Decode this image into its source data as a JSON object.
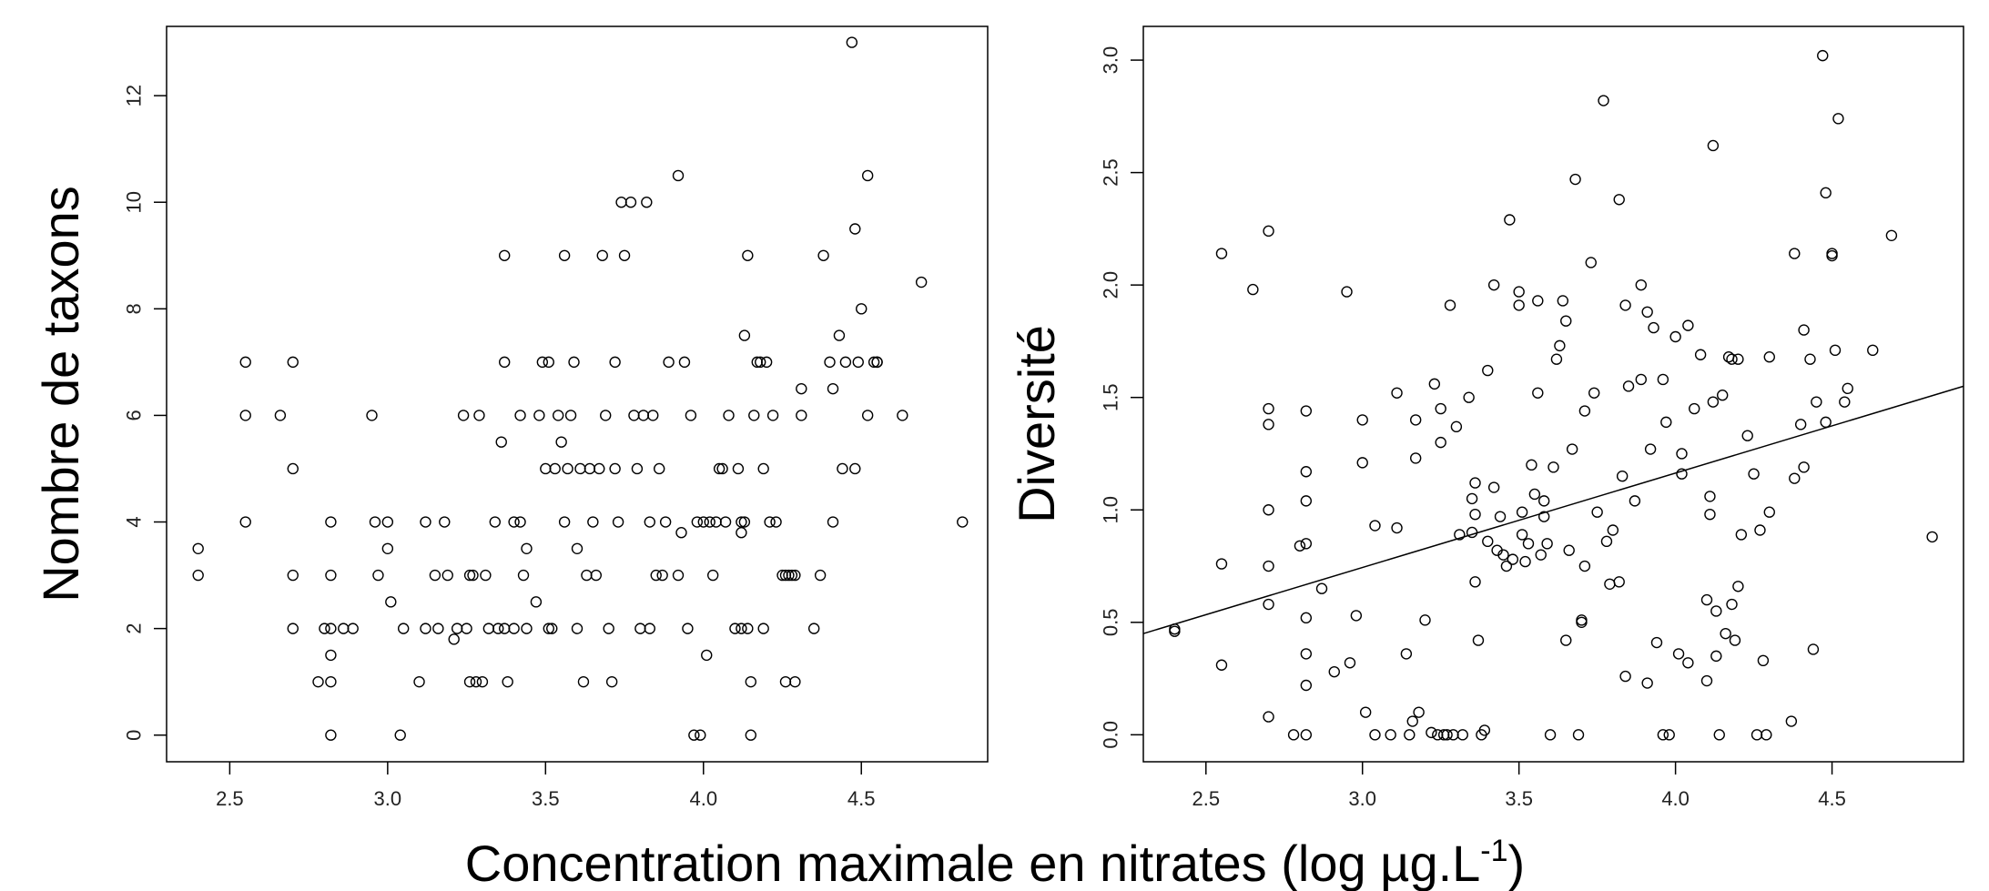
{
  "figure": {
    "shared_xlabel": "Concentration maximale en nitrates (log µg.L",
    "shared_xlabel_sup": "-1",
    "shared_xlabel_end": ")"
  },
  "chart_data": [
    {
      "type": "scatter",
      "title": "",
      "xlabel": "Concentration maximale en nitrates (log µg.L-1)",
      "ylabel": "Nombre de taxons",
      "xlim": [
        2.3,
        4.9
      ],
      "ylim": [
        -0.5,
        13.3
      ],
      "x_ticks": [
        2.5,
        3.0,
        3.5,
        4.0,
        4.5
      ],
      "x_tick_labels": [
        "2.5",
        "3.0",
        "3.5",
        "4.0",
        "4.5"
      ],
      "y_ticks": [
        0,
        2,
        4,
        6,
        8,
        10,
        12
      ],
      "y_tick_labels": [
        "0",
        "2",
        "4",
        "6",
        "8",
        "10",
        "12"
      ],
      "grid": false,
      "regression_line": null,
      "points": [
        [
          2.4,
          3.5
        ],
        [
          2.4,
          3
        ],
        [
          2.55,
          7
        ],
        [
          2.55,
          6
        ],
        [
          2.55,
          4
        ],
        [
          2.66,
          6
        ],
        [
          2.7,
          7
        ],
        [
          2.7,
          5
        ],
        [
          2.7,
          3
        ],
        [
          2.7,
          2
        ],
        [
          2.78,
          1
        ],
        [
          2.8,
          2
        ],
        [
          2.82,
          2
        ],
        [
          2.82,
          4
        ],
        [
          2.82,
          3
        ],
        [
          2.82,
          1.5
        ],
        [
          2.82,
          1
        ],
        [
          2.82,
          0
        ],
        [
          2.86,
          2
        ],
        [
          2.89,
          2
        ],
        [
          2.95,
          6
        ],
        [
          2.96,
          4
        ],
        [
          2.97,
          3
        ],
        [
          3.0,
          4
        ],
        [
          3.0,
          3.5
        ],
        [
          3.01,
          2.5
        ],
        [
          3.04,
          0
        ],
        [
          3.05,
          2
        ],
        [
          3.1,
          1
        ],
        [
          3.12,
          2
        ],
        [
          3.12,
          4
        ],
        [
          3.15,
          3
        ],
        [
          3.16,
          2
        ],
        [
          3.18,
          4
        ],
        [
          3.19,
          3
        ],
        [
          3.21,
          1.8
        ],
        [
          3.22,
          2
        ],
        [
          3.24,
          6
        ],
        [
          3.25,
          2
        ],
        [
          3.26,
          1
        ],
        [
          3.26,
          3
        ],
        [
          3.27,
          3
        ],
        [
          3.28,
          1
        ],
        [
          3.29,
          6
        ],
        [
          3.3,
          1
        ],
        [
          3.31,
          3
        ],
        [
          3.32,
          2
        ],
        [
          3.34,
          4
        ],
        [
          3.35,
          2
        ],
        [
          3.36,
          5.5
        ],
        [
          3.37,
          9
        ],
        [
          3.37,
          7
        ],
        [
          3.37,
          2
        ],
        [
          3.38,
          1
        ],
        [
          3.4,
          4
        ],
        [
          3.4,
          2
        ],
        [
          3.42,
          6
        ],
        [
          3.42,
          4
        ],
        [
          3.43,
          3
        ],
        [
          3.44,
          2
        ],
        [
          3.44,
          3.5
        ],
        [
          3.47,
          2.5
        ],
        [
          3.48,
          6
        ],
        [
          3.49,
          7
        ],
        [
          3.5,
          5
        ],
        [
          3.51,
          7
        ],
        [
          3.51,
          2
        ],
        [
          3.52,
          2
        ],
        [
          3.53,
          5
        ],
        [
          3.54,
          6
        ],
        [
          3.55,
          5.5
        ],
        [
          3.56,
          9
        ],
        [
          3.56,
          4
        ],
        [
          3.57,
          5
        ],
        [
          3.58,
          6
        ],
        [
          3.59,
          7
        ],
        [
          3.6,
          2
        ],
        [
          3.6,
          3.5
        ],
        [
          3.61,
          5
        ],
        [
          3.62,
          1
        ],
        [
          3.63,
          3
        ],
        [
          3.64,
          5
        ],
        [
          3.65,
          4
        ],
        [
          3.66,
          3
        ],
        [
          3.67,
          5
        ],
        [
          3.68,
          9
        ],
        [
          3.69,
          6
        ],
        [
          3.7,
          2
        ],
        [
          3.71,
          1
        ],
        [
          3.72,
          7
        ],
        [
          3.72,
          5
        ],
        [
          3.73,
          4
        ],
        [
          3.74,
          10
        ],
        [
          3.75,
          9
        ],
        [
          3.77,
          10
        ],
        [
          3.78,
          6
        ],
        [
          3.79,
          5
        ],
        [
          3.8,
          2
        ],
        [
          3.81,
          6
        ],
        [
          3.82,
          10
        ],
        [
          3.83,
          4
        ],
        [
          3.83,
          2
        ],
        [
          3.84,
          6
        ],
        [
          3.85,
          3
        ],
        [
          3.86,
          5
        ],
        [
          3.87,
          3
        ],
        [
          3.88,
          4
        ],
        [
          3.89,
          7
        ],
        [
          3.92,
          10.5
        ],
        [
          3.92,
          3
        ],
        [
          3.93,
          3.8
        ],
        [
          3.94,
          7
        ],
        [
          3.95,
          2
        ],
        [
          3.96,
          6
        ],
        [
          3.97,
          0
        ],
        [
          3.98,
          4
        ],
        [
          3.99,
          0
        ],
        [
          4.0,
          4
        ],
        [
          4.01,
          1.5
        ],
        [
          4.02,
          4
        ],
        [
          4.03,
          3
        ],
        [
          4.04,
          4
        ],
        [
          4.05,
          5
        ],
        [
          4.06,
          5
        ],
        [
          4.07,
          4
        ],
        [
          4.08,
          6
        ],
        [
          4.1,
          2
        ],
        [
          4.11,
          5
        ],
        [
          4.12,
          4
        ],
        [
          4.12,
          3.8
        ],
        [
          4.12,
          2
        ],
        [
          4.13,
          7.5
        ],
        [
          4.13,
          4
        ],
        [
          4.14,
          9
        ],
        [
          4.14,
          2
        ],
        [
          4.15,
          1
        ],
        [
          4.15,
          0
        ],
        [
          4.16,
          6
        ],
        [
          4.17,
          7
        ],
        [
          4.18,
          7
        ],
        [
          4.19,
          5
        ],
        [
          4.19,
          2
        ],
        [
          4.2,
          7
        ],
        [
          4.21,
          4
        ],
        [
          4.22,
          6
        ],
        [
          4.23,
          4
        ],
        [
          4.25,
          3
        ],
        [
          4.26,
          3
        ],
        [
          4.26,
          1
        ],
        [
          4.27,
          3
        ],
        [
          4.28,
          3
        ],
        [
          4.29,
          1
        ],
        [
          4.29,
          3
        ],
        [
          4.31,
          6.5
        ],
        [
          4.31,
          6
        ],
        [
          4.35,
          2
        ],
        [
          4.37,
          3
        ],
        [
          4.38,
          9
        ],
        [
          4.4,
          7
        ],
        [
          4.41,
          6.5
        ],
        [
          4.41,
          4
        ],
        [
          4.43,
          7.5
        ],
        [
          4.44,
          5
        ],
        [
          4.45,
          7
        ],
        [
          4.47,
          13
        ],
        [
          4.48,
          9.5
        ],
        [
          4.48,
          5
        ],
        [
          4.49,
          7
        ],
        [
          4.5,
          8
        ],
        [
          4.52,
          6
        ],
        [
          4.52,
          10.5
        ],
        [
          4.54,
          7
        ],
        [
          4.55,
          7
        ],
        [
          4.55,
          7
        ],
        [
          4.63,
          6
        ],
        [
          4.69,
          8.5
        ],
        [
          4.82,
          4
        ]
      ]
    },
    {
      "type": "scatter",
      "title": "",
      "xlabel": "Concentration maximale en nitrates (log µg.L-1)",
      "ylabel": "Diversité",
      "xlim": [
        2.3,
        4.92
      ],
      "ylim": [
        -0.12,
        3.15
      ],
      "x_ticks": [
        2.5,
        3.0,
        3.5,
        4.0,
        4.5
      ],
      "x_tick_labels": [
        "2.5",
        "3.0",
        "3.5",
        "4.0",
        "4.5"
      ],
      "y_ticks": [
        0.0,
        0.5,
        1.0,
        1.5,
        2.0,
        2.5,
        3.0
      ],
      "y_tick_labels": [
        "0.0",
        "0.5",
        "1.0",
        "1.5",
        "2.0",
        "2.5",
        "3.0"
      ],
      "grid": false,
      "regression_line": {
        "x": [
          2.3,
          4.92
        ],
        "y": [
          0.45,
          1.55
        ]
      },
      "points": [
        [
          2.4,
          0.46
        ],
        [
          2.4,
          0.47
        ],
        [
          2.55,
          2.14
        ],
        [
          2.55,
          0.76
        ],
        [
          2.55,
          0.31
        ],
        [
          2.65,
          1.98
        ],
        [
          2.7,
          2.24
        ],
        [
          2.7,
          1.45
        ],
        [
          2.7,
          1.38
        ],
        [
          2.7,
          1.0
        ],
        [
          2.7,
          0.75
        ],
        [
          2.7,
          0.58
        ],
        [
          2.7,
          0.08
        ],
        [
          2.78,
          0.0
        ],
        [
          2.8,
          0.84
        ],
        [
          2.82,
          1.44
        ],
        [
          2.82,
          1.17
        ],
        [
          2.82,
          1.04
        ],
        [
          2.82,
          0.85
        ],
        [
          2.82,
          0.52
        ],
        [
          2.82,
          0.36
        ],
        [
          2.82,
          0.22
        ],
        [
          2.82,
          0.0
        ],
        [
          2.87,
          0.65
        ],
        [
          2.91,
          0.28
        ],
        [
          2.95,
          1.97
        ],
        [
          2.96,
          0.32
        ],
        [
          2.98,
          0.53
        ],
        [
          3.0,
          1.4
        ],
        [
          3.0,
          1.21
        ],
        [
          3.01,
          0.1
        ],
        [
          3.04,
          0.93
        ],
        [
          3.04,
          0.0
        ],
        [
          3.09,
          0.0
        ],
        [
          3.11,
          1.52
        ],
        [
          3.11,
          0.92
        ],
        [
          3.14,
          0.36
        ],
        [
          3.15,
          0.0
        ],
        [
          3.16,
          0.06
        ],
        [
          3.17,
          1.4
        ],
        [
          3.17,
          1.23
        ],
        [
          3.18,
          0.1
        ],
        [
          3.2,
          0.51
        ],
        [
          3.22,
          0.01
        ],
        [
          3.23,
          1.56
        ],
        [
          3.24,
          0.0
        ],
        [
          3.25,
          1.45
        ],
        [
          3.25,
          1.3
        ],
        [
          3.26,
          0.0
        ],
        [
          3.27,
          0.0
        ],
        [
          3.28,
          1.91
        ],
        [
          3.29,
          0.0
        ],
        [
          3.3,
          1.37
        ],
        [
          3.31,
          0.89
        ],
        [
          3.32,
          0.0
        ],
        [
          3.34,
          1.5
        ],
        [
          3.35,
          0.9
        ],
        [
          3.35,
          1.05
        ],
        [
          3.36,
          1.12
        ],
        [
          3.36,
          0.98
        ],
        [
          3.36,
          0.68
        ],
        [
          3.37,
          0.42
        ],
        [
          3.38,
          0.0
        ],
        [
          3.39,
          0.02
        ],
        [
          3.4,
          1.62
        ],
        [
          3.4,
          0.86
        ],
        [
          3.42,
          2.0
        ],
        [
          3.42,
          1.1
        ],
        [
          3.43,
          0.82
        ],
        [
          3.44,
          0.97
        ],
        [
          3.45,
          0.8
        ],
        [
          3.46,
          0.75
        ],
        [
          3.47,
          2.29
        ],
        [
          3.48,
          0.78
        ],
        [
          3.5,
          1.91
        ],
        [
          3.5,
          1.97
        ],
        [
          3.51,
          0.99
        ],
        [
          3.51,
          0.89
        ],
        [
          3.52,
          0.77
        ],
        [
          3.53,
          0.85
        ],
        [
          3.54,
          1.2
        ],
        [
          3.55,
          1.07
        ],
        [
          3.56,
          1.93
        ],
        [
          3.56,
          1.52
        ],
        [
          3.57,
          0.8
        ],
        [
          3.58,
          1.04
        ],
        [
          3.58,
          0.97
        ],
        [
          3.59,
          0.85
        ],
        [
          3.6,
          0.0
        ],
        [
          3.61,
          1.19
        ],
        [
          3.62,
          1.67
        ],
        [
          3.63,
          1.73
        ],
        [
          3.64,
          1.93
        ],
        [
          3.65,
          1.84
        ],
        [
          3.65,
          0.42
        ],
        [
          3.66,
          0.82
        ],
        [
          3.67,
          1.27
        ],
        [
          3.68,
          2.47
        ],
        [
          3.69,
          0.0
        ],
        [
          3.7,
          0.5
        ],
        [
          3.7,
          0.51
        ],
        [
          3.71,
          1.44
        ],
        [
          3.71,
          0.75
        ],
        [
          3.73,
          2.1
        ],
        [
          3.74,
          1.52
        ],
        [
          3.75,
          0.99
        ],
        [
          3.77,
          2.82
        ],
        [
          3.78,
          0.86
        ],
        [
          3.79,
          0.67
        ],
        [
          3.8,
          0.91
        ],
        [
          3.82,
          2.38
        ],
        [
          3.82,
          0.68
        ],
        [
          3.83,
          1.15
        ],
        [
          3.84,
          1.91
        ],
        [
          3.84,
          0.26
        ],
        [
          3.85,
          1.55
        ],
        [
          3.87,
          1.04
        ],
        [
          3.89,
          2.0
        ],
        [
          3.89,
          1.58
        ],
        [
          3.91,
          1.88
        ],
        [
          3.91,
          0.23
        ],
        [
          3.92,
          1.27
        ],
        [
          3.93,
          1.81
        ],
        [
          3.94,
          0.41
        ],
        [
          3.96,
          1.58
        ],
        [
          3.96,
          0.0
        ],
        [
          3.97,
          1.39
        ],
        [
          3.98,
          0.0
        ],
        [
          4.0,
          1.77
        ],
        [
          4.01,
          0.36
        ],
        [
          4.02,
          1.25
        ],
        [
          4.02,
          1.16
        ],
        [
          4.04,
          1.82
        ],
        [
          4.04,
          0.32
        ],
        [
          4.06,
          1.45
        ],
        [
          4.08,
          1.69
        ],
        [
          4.1,
          0.6
        ],
        [
          4.1,
          0.24
        ],
        [
          4.11,
          1.06
        ],
        [
          4.11,
          0.98
        ],
        [
          4.12,
          2.62
        ],
        [
          4.12,
          1.48
        ],
        [
          4.13,
          0.55
        ],
        [
          4.13,
          0.35
        ],
        [
          4.14,
          0.0
        ],
        [
          4.15,
          1.51
        ],
        [
          4.16,
          0.45
        ],
        [
          4.17,
          1.68
        ],
        [
          4.18,
          1.67
        ],
        [
          4.18,
          0.58
        ],
        [
          4.19,
          0.42
        ],
        [
          4.2,
          1.67
        ],
        [
          4.2,
          0.66
        ],
        [
          4.21,
          0.89
        ],
        [
          4.23,
          1.33
        ],
        [
          4.25,
          1.16
        ],
        [
          4.26,
          0.0
        ],
        [
          4.27,
          0.91
        ],
        [
          4.28,
          0.33
        ],
        [
          4.29,
          0.0
        ],
        [
          4.3,
          1.68
        ],
        [
          4.3,
          0.99
        ],
        [
          4.37,
          0.06
        ],
        [
          4.38,
          2.14
        ],
        [
          4.38,
          1.14
        ],
        [
          4.4,
          1.38
        ],
        [
          4.41,
          1.8
        ],
        [
          4.41,
          1.19
        ],
        [
          4.43,
          1.67
        ],
        [
          4.44,
          0.38
        ],
        [
          4.45,
          1.48
        ],
        [
          4.47,
          3.02
        ],
        [
          4.48,
          2.41
        ],
        [
          4.48,
          1.39
        ],
        [
          4.5,
          2.14
        ],
        [
          4.5,
          2.13
        ],
        [
          4.51,
          1.71
        ],
        [
          4.52,
          2.74
        ],
        [
          4.54,
          1.48
        ],
        [
          4.55,
          1.54
        ],
        [
          4.63,
          1.71
        ],
        [
          4.69,
          2.22
        ],
        [
          4.82,
          0.88
        ]
      ]
    }
  ]
}
